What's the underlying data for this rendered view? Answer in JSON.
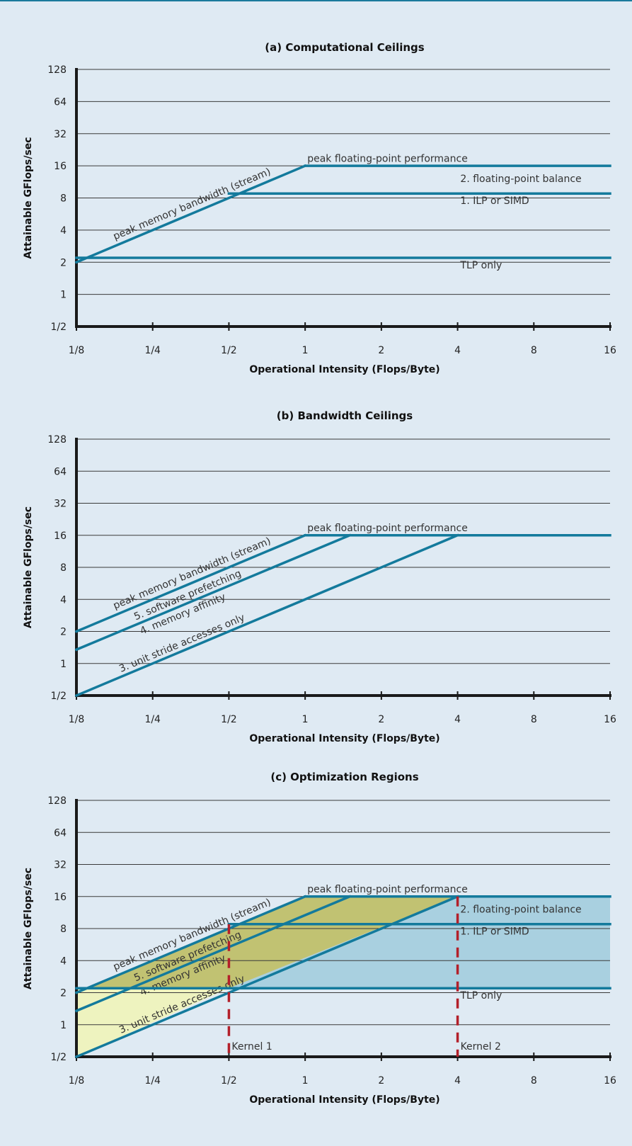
{
  "chart_data": [
    {
      "type": "line",
      "scale": "log2",
      "title": "(a) Computational Ceilings",
      "xlabel": "Operational Intensity (Flops/Byte)",
      "ylabel": "Attainable GFlops/sec",
      "x_ticks": [
        "1/8",
        "1/4",
        "1/2",
        "1",
        "2",
        "4",
        "8",
        "16"
      ],
      "y_ticks": [
        "1/2",
        "1",
        "2",
        "4",
        "8",
        "16",
        "32",
        "64",
        "128"
      ],
      "xlim": [
        0.125,
        16
      ],
      "ylim": [
        0.5,
        128
      ],
      "grid": "horizontal",
      "series": [
        {
          "name": "peak memory bandwidth (stream)",
          "x": [
            0.125,
            1
          ],
          "y": [
            2,
            16
          ]
        },
        {
          "name": "peak floating-point performance",
          "x": [
            1,
            16
          ],
          "y": [
            16,
            16
          ]
        },
        {
          "name": "1. ILP or SIMD",
          "x": [
            0.5,
            16
          ],
          "y": [
            8.8,
            8.8
          ]
        },
        {
          "name": "TLP only",
          "x": [
            0.125,
            16
          ],
          "y": [
            2.2,
            2.2
          ]
        }
      ],
      "annotations": [
        {
          "text": "peak floating-point performance",
          "x": 1.02,
          "y": 17.5
        },
        {
          "text": "2. floating-point balance",
          "x": 4.1,
          "y": 11.3
        },
        {
          "text": "1. ILP or SIMD",
          "x": 4.1,
          "y": 7.0
        },
        {
          "text": "TLP only",
          "x": 4.1,
          "y": 1.75
        }
      ]
    },
    {
      "type": "line",
      "scale": "log2",
      "title": "(b) Bandwidth Ceilings",
      "xlabel": "Operational Intensity (Flops/Byte)",
      "ylabel": "Attainable GFlops/sec",
      "x_ticks": [
        "1/8",
        "1/4",
        "1/2",
        "1",
        "2",
        "4",
        "8",
        "16"
      ],
      "y_ticks": [
        "1/2",
        "1",
        "2",
        "4",
        "8",
        "16",
        "32",
        "64",
        "128"
      ],
      "xlim": [
        0.125,
        16
      ],
      "ylim": [
        0.5,
        128
      ],
      "grid": "horizontal",
      "series": [
        {
          "name": "peak memory bandwidth (stream)",
          "x": [
            0.125,
            1
          ],
          "y": [
            2,
            16
          ]
        },
        {
          "name": "5. software prefetching",
          "x": [
            0.125,
            1.5
          ],
          "y": [
            1.35,
            16
          ]
        },
        {
          "name": "4. memory affinity",
          "x": [
            0.125,
            1.5
          ],
          "y": [
            1.35,
            16
          ]
        },
        {
          "name": "3. unit stride accesses only",
          "x": [
            0.125,
            4
          ],
          "y": [
            0.5,
            16
          ]
        },
        {
          "name": "peak floating-point performance",
          "x": [
            1,
            16
          ],
          "y": [
            16,
            16
          ]
        }
      ],
      "annotations": [
        {
          "text": "peak floating-point performance",
          "x": 1.02,
          "y": 17.5
        }
      ]
    },
    {
      "type": "area",
      "scale": "log2",
      "title": "(c) Optimization Regions",
      "xlabel": "Operational Intensity (Flops/Byte)",
      "ylabel": "Attainable GFlops/sec",
      "x_ticks": [
        "1/8",
        "1/4",
        "1/2",
        "1",
        "2",
        "4",
        "8",
        "16"
      ],
      "y_ticks": [
        "1/2",
        "1",
        "2",
        "4",
        "8",
        "16",
        "32",
        "64",
        "128"
      ],
      "xlim": [
        0.125,
        16
      ],
      "ylim": [
        0.5,
        128
      ],
      "grid": "horizontal",
      "regions": [
        {
          "color": "#a9d0e0",
          "points": [
            [
              0.5,
              2.2
            ],
            [
              4,
              16
            ],
            [
              16,
              16
            ],
            [
              16,
              2.2
            ]
          ]
        },
        {
          "color": "#c1c272",
          "points": [
            [
              0.125,
              2
            ],
            [
              1,
              16
            ],
            [
              4,
              16
            ],
            [
              0.5,
              2.2
            ],
            [
              0.125,
              2.2
            ]
          ]
        },
        {
          "color": "#eef3bf",
          "points": [
            [
              0.125,
              0.5
            ],
            [
              0.5,
              2.2
            ],
            [
              0.125,
              2.2
            ]
          ]
        }
      ],
      "series": [
        {
          "name": "peak memory bandwidth (stream)",
          "x": [
            0.125,
            1
          ],
          "y": [
            2,
            16
          ]
        },
        {
          "name": "5. software prefetching",
          "x": [
            0.125,
            1.5
          ],
          "y": [
            1.35,
            16
          ]
        },
        {
          "name": "4. memory affinity",
          "x": [
            0.125,
            1.5
          ],
          "y": [
            1.35,
            16
          ]
        },
        {
          "name": "3. unit stride accesses only",
          "x": [
            0.125,
            4
          ],
          "y": [
            0.5,
            16
          ]
        },
        {
          "name": "peak floating-point performance",
          "x": [
            1,
            16
          ],
          "y": [
            16,
            16
          ]
        },
        {
          "name": "1. ILP or SIMD",
          "x": [
            0.5,
            16
          ],
          "y": [
            8.8,
            8.8
          ]
        },
        {
          "name": "TLP only",
          "x": [
            0.125,
            16
          ],
          "y": [
            2.2,
            2.2
          ]
        }
      ],
      "kernels": [
        {
          "name": "Kernel 1",
          "x": 0.5,
          "y_top": 8.8
        },
        {
          "name": "Kernel 2",
          "x": 4,
          "y_top": 16
        }
      ],
      "annotations": [
        {
          "text": "peak floating-point performance",
          "x": 1.02,
          "y": 17.5
        },
        {
          "text": "2. floating-point balance",
          "x": 4.1,
          "y": 11.3
        },
        {
          "text": "1. ILP or SIMD",
          "x": 4.1,
          "y": 7.0
        },
        {
          "text": "TLP only",
          "x": 4.1,
          "y": 1.75
        }
      ]
    }
  ],
  "colors": {
    "background": "#dfeaf3",
    "roofline": "#137a9c",
    "kernel_line": "#b3202a",
    "axis": "#1a1a1a",
    "grid": "#3a3a3a",
    "text": "#222222"
  }
}
